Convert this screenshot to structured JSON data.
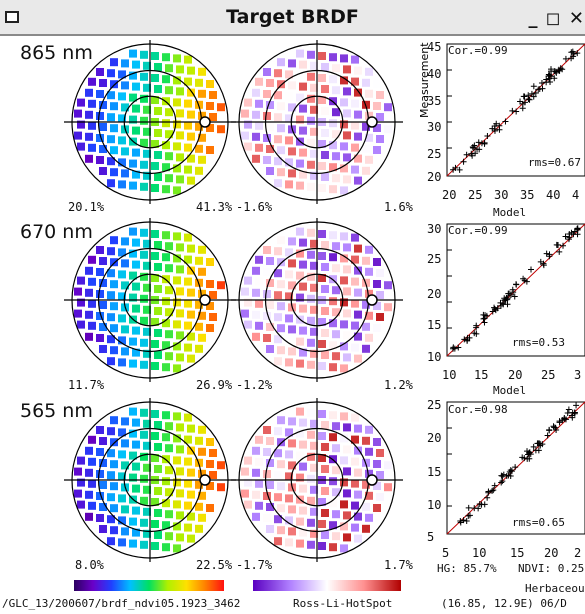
{
  "window": {
    "title": "Target BRDF",
    "controls": "_ ◻ ✕"
  },
  "rows": [
    {
      "band": "865 nm",
      "min_pct": "20.1%",
      "max_pct": "41.3%",
      "res_min": "-1.6%",
      "res_max": "1.6%",
      "corr": "Cor.=0.99",
      "rms": "rms=0.67",
      "y_ticks": [
        "45",
        "40",
        "35",
        "30",
        "25",
        "20"
      ],
      "x_ticks": [
        "20",
        "25",
        "30",
        "35",
        "40",
        "4"
      ],
      "ylabel": "Measurement",
      "xlabel": "Model"
    },
    {
      "band": "670 nm",
      "min_pct": "11.7%",
      "max_pct": "26.9%",
      "res_min": "-1.2%",
      "res_max": "1.2%",
      "corr": "Cor.=0.99",
      "rms": "rms=0.53",
      "y_ticks": [
        "30",
        "25",
        "20",
        "15",
        "10"
      ],
      "x_ticks": [
        "10",
        "15",
        "20",
        "25",
        "3"
      ],
      "ylabel": "",
      "xlabel": "Model"
    },
    {
      "band": "565 nm",
      "min_pct": "8.0%",
      "max_pct": "22.5%",
      "res_min": "-1.7%",
      "res_max": "1.7%",
      "corr": "Cor.=0.98",
      "rms": "rms=0.65",
      "y_ticks": [
        "25",
        "20",
        "15",
        "10",
        "5"
      ],
      "x_ticks": [
        "5",
        "10",
        "15",
        "20",
        "2"
      ],
      "ylabel": "",
      "xlabel": ""
    }
  ],
  "footer": {
    "hg": "HG: 85.7%",
    "ndvi": "NDVI: 0.25",
    "landcover": "Herbaceous",
    "path": "/GLC_13/200607/brdf_ndvi05.1923_3462",
    "model": "Ross-Li-HotSpot",
    "coords": "(16.85, 12.9E) 06/D"
  },
  "colors": {
    "rainbow": [
      "#2b0060",
      "#6a00c8",
      "#2040ff",
      "#00c0ff",
      "#00e060",
      "#b0f000",
      "#ffe000",
      "#ff8000",
      "#ff1010"
    ],
    "residual": [
      "#5a00c0",
      "#b080ff",
      "#ffffff",
      "#ff9090",
      "#b00000"
    ]
  }
}
